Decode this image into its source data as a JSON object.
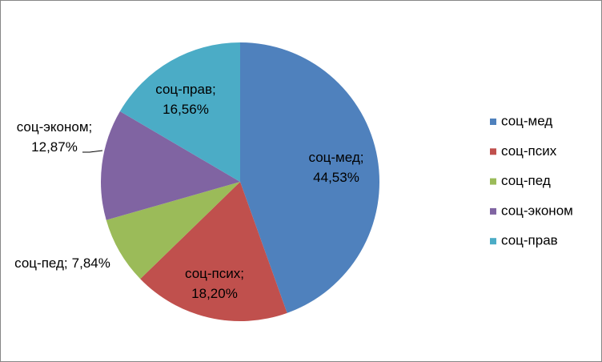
{
  "chart_data": {
    "type": "pie",
    "categories": [
      "соц-мед",
      "соц-псих",
      "соц-пед",
      "соц-эконом",
      "соц-прав"
    ],
    "values": [
      44.53,
      18.2,
      7.84,
      12.87,
      16.56
    ],
    "value_labels": [
      "44,53%",
      "18,20%",
      "7,84%",
      "12,87%",
      "16,56%"
    ],
    "label_separator": ";",
    "colors": [
      "#4f81bd",
      "#c0504d",
      "#9bbb59",
      "#8064a2",
      "#4bacc6"
    ],
    "legend": "right"
  }
}
